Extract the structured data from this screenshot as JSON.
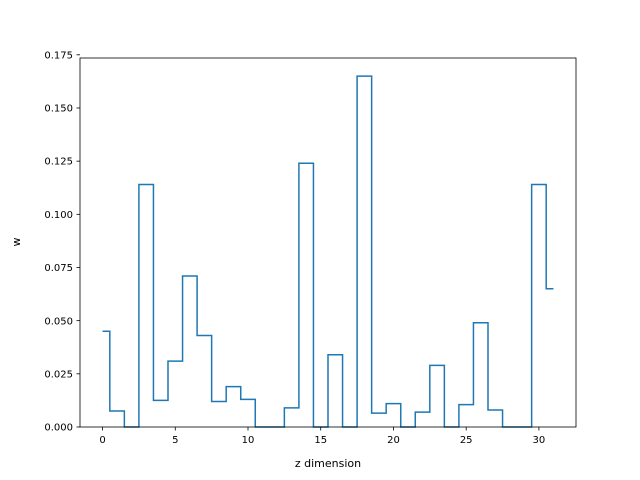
{
  "chart_data": {
    "type": "step",
    "title": "",
    "xlabel": "z dimension",
    "ylabel": "w",
    "xlim": [
      -1.55,
      32.55
    ],
    "ylim": [
      0,
      0.1735
    ],
    "xticks": [
      0,
      5,
      10,
      15,
      20,
      25,
      30
    ],
    "yticks": [
      0.0,
      0.025,
      0.05,
      0.075,
      0.1,
      0.125,
      0.15,
      0.175
    ],
    "ytick_labels": [
      "0.000",
      "0.025",
      "0.050",
      "0.075",
      "0.100",
      "0.125",
      "0.150",
      "0.175"
    ],
    "step_where": "mid",
    "grid": false,
    "line_color": "#1f77b4",
    "x": [
      0,
      1,
      2,
      3,
      4,
      5,
      6,
      7,
      8,
      9,
      10,
      11,
      12,
      13,
      14,
      15,
      16,
      17,
      18,
      19,
      20,
      21,
      22,
      23,
      24,
      25,
      26,
      27,
      28,
      29,
      30,
      31
    ],
    "values": [
      0.045,
      0.0075,
      0.0,
      0.114,
      0.0125,
      0.031,
      0.071,
      0.043,
      0.012,
      0.019,
      0.013,
      0.0,
      0.0,
      0.009,
      0.124,
      0.0,
      0.034,
      0.0,
      0.165,
      0.0065,
      0.011,
      0.0,
      0.007,
      0.029,
      0.0,
      0.0105,
      0.049,
      0.008,
      0.0,
      0.0,
      0.114,
      0.065
    ]
  }
}
